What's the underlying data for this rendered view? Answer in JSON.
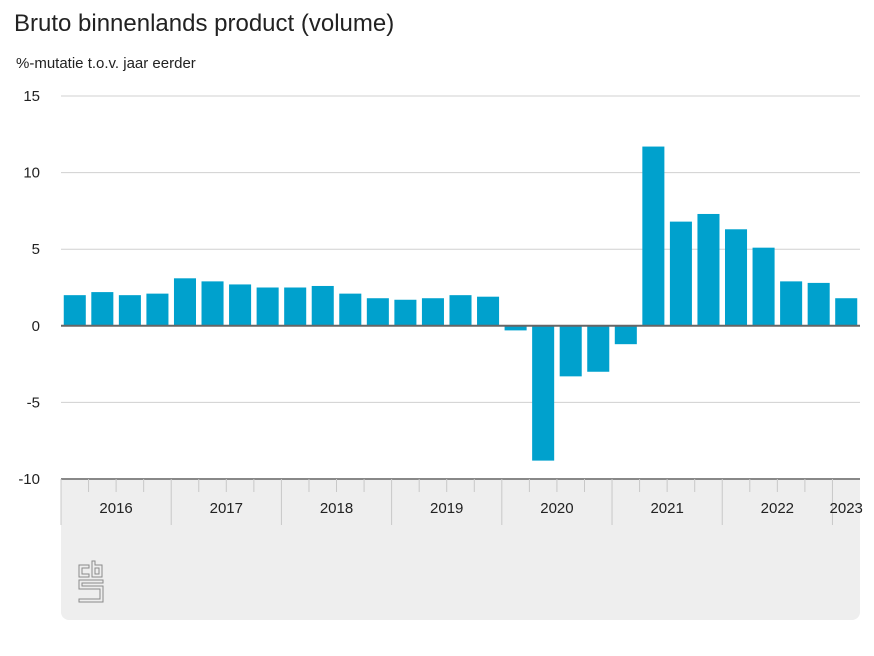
{
  "chart_data": {
    "type": "bar",
    "title": "Bruto binnenlands product (volume)",
    "ylabel": "%-mutatie t.o.v. jaar eerder",
    "ylim": [
      -10,
      15
    ],
    "yticks": [
      15,
      10,
      5,
      0,
      -5,
      -10
    ],
    "grid": true,
    "year_labels": [
      "2016",
      "2017",
      "2018",
      "2019",
      "2020",
      "2021",
      "2022",
      "2023"
    ],
    "categories": [
      "2016 Q1",
      "2016 Q2",
      "2016 Q3",
      "2016 Q4",
      "2017 Q1",
      "2017 Q2",
      "2017 Q3",
      "2017 Q4",
      "2018 Q1",
      "2018 Q2",
      "2018 Q3",
      "2018 Q4",
      "2019 Q1",
      "2019 Q2",
      "2019 Q3",
      "2019 Q4",
      "2020 Q1",
      "2020 Q2",
      "2020 Q3",
      "2020 Q4",
      "2021 Q1",
      "2021 Q2",
      "2021 Q3",
      "2021 Q4",
      "2022 Q1",
      "2022 Q2",
      "2022 Q3",
      "2022 Q4",
      "2023 Q1"
    ],
    "values": [
      2.0,
      2.2,
      2.0,
      2.1,
      3.1,
      2.9,
      2.7,
      2.5,
      2.5,
      2.6,
      2.1,
      1.8,
      1.7,
      1.8,
      2.0,
      1.9,
      -0.3,
      -8.8,
      -3.3,
      -3.0,
      -1.2,
      11.7,
      6.8,
      7.3,
      6.3,
      5.1,
      2.9,
      2.8,
      1.8
    ],
    "color": "#00a1cd"
  },
  "logo": "cbs"
}
